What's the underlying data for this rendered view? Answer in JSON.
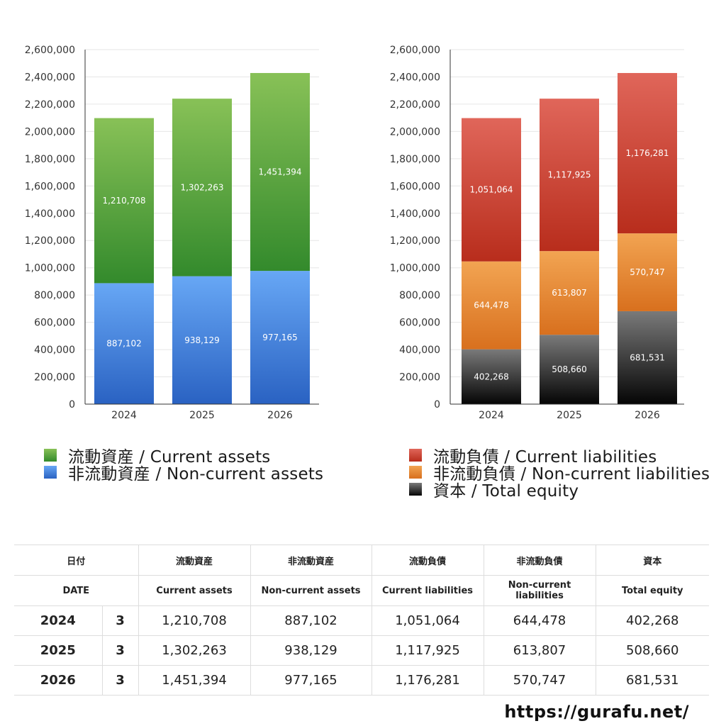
{
  "chart_data": [
    {
      "type": "bar",
      "stacked": true,
      "categories": [
        "2024",
        "2025",
        "2026"
      ],
      "ylim": [
        0,
        2600000
      ],
      "yticks": [
        0,
        200000,
        400000,
        600000,
        800000,
        1000000,
        1200000,
        1400000,
        1600000,
        1800000,
        2000000,
        2200000,
        2400000,
        2600000
      ],
      "ytick_labels": [
        "0",
        "200,000",
        "400,000",
        "600,000",
        "800,000",
        "1,000,000",
        "1,200,000",
        "1,400,000",
        "1,600,000",
        "1,800,000",
        "2,000,000",
        "2,200,000",
        "2,400,000",
        "2,600,000"
      ],
      "grid": true,
      "series": [
        {
          "name": "非流動資産 / Non-current assets",
          "values": [
            887102,
            938129,
            977165
          ],
          "labels": [
            "887,102",
            "938,129",
            "977,165"
          ],
          "color_top": "#67a7f5",
          "color_bottom": "#2a62c2"
        },
        {
          "name": "流動資産 / Current assets",
          "values": [
            1210708,
            1302263,
            1451394
          ],
          "labels": [
            "1,210,708",
            "1,302,263",
            "1,451,394"
          ],
          "color_top": "#88c157",
          "color_bottom": "#338a2c"
        }
      ]
    },
    {
      "type": "bar",
      "stacked": true,
      "categories": [
        "2024",
        "2025",
        "2026"
      ],
      "ylim": [
        0,
        2600000
      ],
      "yticks": [
        0,
        200000,
        400000,
        600000,
        800000,
        1000000,
        1200000,
        1400000,
        1600000,
        1800000,
        2000000,
        2200000,
        2400000,
        2600000
      ],
      "ytick_labels": [
        "0",
        "200,000",
        "400,000",
        "600,000",
        "800,000",
        "1,000,000",
        "1,200,000",
        "1,400,000",
        "1,600,000",
        "1,800,000",
        "2,000,000",
        "2,200,000",
        "2,400,000",
        "2,600,000"
      ],
      "grid": true,
      "series": [
        {
          "name": "資本 / Total equity",
          "values": [
            402268,
            508660,
            681531
          ],
          "labels": [
            "402,268",
            "508,660",
            "681,531"
          ],
          "color_top": "#7a7a7a",
          "color_bottom": "#050505"
        },
        {
          "name": "非流動負債 / Non-current liabilities",
          "values": [
            644478,
            613807,
            570747
          ],
          "labels": [
            "644,478",
            "613,807",
            "570,747"
          ],
          "color_top": "#f2a452",
          "color_bottom": "#d8701e"
        },
        {
          "name": "流動負債 / Current liabilities",
          "values": [
            1051064,
            1117925,
            1176281
          ],
          "labels": [
            "1,051,064",
            "1,117,925",
            "1,176,281"
          ],
          "color_top": "#e0665a",
          "color_bottom": "#b82d1c"
        }
      ]
    }
  ],
  "legend_left": [
    {
      "label": "流動資産 / Current assets",
      "color_top": "#88c157",
      "color_bottom": "#338a2c"
    },
    {
      "label": "非流動資産 / Non-current assets",
      "color_top": "#67a7f5",
      "color_bottom": "#2a62c2"
    }
  ],
  "legend_right": [
    {
      "label": "流動負債 / Current liabilities",
      "color_top": "#e0665a",
      "color_bottom": "#b82d1c"
    },
    {
      "label": "非流動負債 / Non-current liabilities",
      "color_top": "#f2a452",
      "color_bottom": "#d8701e"
    },
    {
      "label": "資本 / Total equity",
      "color_top": "#7a7a7a",
      "color_bottom": "#050505"
    }
  ],
  "table": {
    "header_jp": [
      "日付",
      "流動資産",
      "非流動資産",
      "流動負債",
      "非流動負債",
      "資本"
    ],
    "header_en": [
      "DATE",
      "Current assets",
      "Non-current assets",
      "Current liabilities",
      "Non-current liabilities",
      "Total equity"
    ],
    "rows": [
      {
        "year": "2024",
        "count": "3",
        "cells": [
          "1,210,708",
          "887,102",
          "1,051,064",
          "644,478",
          "402,268"
        ]
      },
      {
        "year": "2025",
        "count": "3",
        "cells": [
          "1,302,263",
          "938,129",
          "1,117,925",
          "613,807",
          "508,660"
        ]
      },
      {
        "year": "2026",
        "count": "3",
        "cells": [
          "1,451,394",
          "977,165",
          "1,176,281",
          "570,747",
          "681,531"
        ]
      }
    ]
  },
  "source_url": "https://gurafu.net/"
}
